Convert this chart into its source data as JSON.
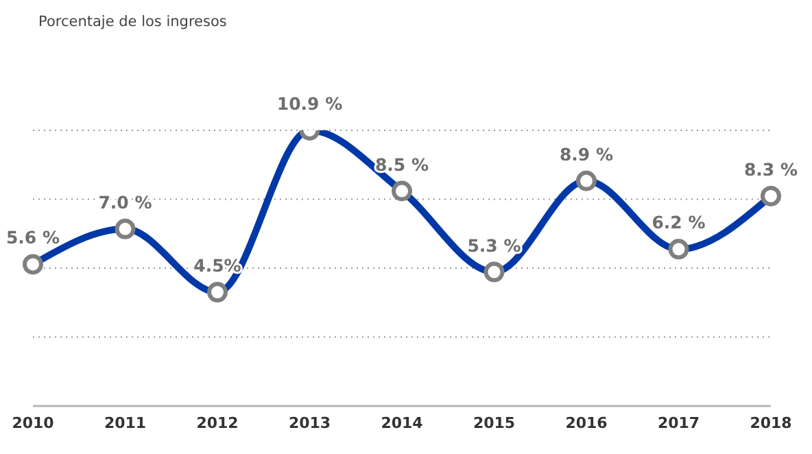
{
  "chart_data": {
    "type": "line",
    "title": "Porcentaje de los ingresos",
    "categories": [
      "2010",
      "2011",
      "2012",
      "2013",
      "2014",
      "2015",
      "2016",
      "2017",
      "2018"
    ],
    "series": [
      {
        "color": "#0038a8",
        "values": [
          5.6,
          7.0,
          4.5,
          10.9,
          8.5,
          5.3,
          8.9,
          6.2,
          8.3
        ],
        "value_labels": [
          "5.6 %",
          "7.0 %",
          "4.5%",
          "10.9 %",
          "8.5 %",
          "5.3 %",
          "8.9 %",
          "6.2 %",
          "8.3 %"
        ]
      }
    ],
    "ylim": [
      0,
      10.9
    ],
    "yticks": [
      {
        "value": 2.725,
        "label": null
      },
      {
        "value": 5.45,
        "label": null
      },
      {
        "value": 8.175,
        "label": null
      },
      {
        "value": 10.9,
        "label": null
      }
    ],
    "grid": "y",
    "tick_labels": "x",
    "marker": "circle",
    "line_style": "solid"
  }
}
